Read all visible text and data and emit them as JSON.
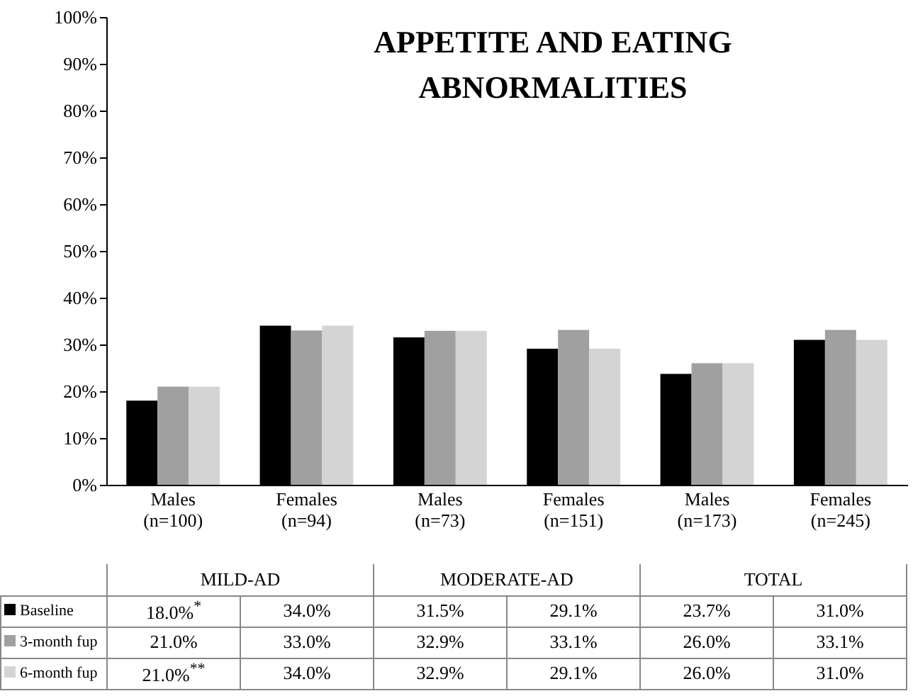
{
  "chart_data": {
    "type": "bar",
    "title": "APPETITE AND EATING ABNORMALITIES",
    "categories": [
      "Males (n=100)",
      "Females (n=94)",
      "Males (n=73)",
      "Females (n=151)",
      "Males (n=173)",
      "Females (n=245)"
    ],
    "series": [
      {
        "name": "Baseline",
        "color": "#000000",
        "values": [
          18.0,
          34.0,
          31.5,
          29.1,
          23.7,
          31.0
        ],
        "value_labels": [
          "18.0%$^{*}$",
          "34.0%",
          "31.5%",
          "29.1%",
          "23.7%",
          "31.0%"
        ]
      },
      {
        "name": "3-month fup",
        "color": "#a0a0a0",
        "values": [
          21.0,
          33.0,
          32.9,
          33.1,
          26.0,
          33.1
        ],
        "value_labels": [
          "21.0%",
          "33.0%",
          "32.9%",
          "33.1%",
          "26.0%",
          "33.1%"
        ]
      },
      {
        "name": "6-month fup",
        "color": "#d4d4d4",
        "values": [
          21.0,
          34.0,
          32.9,
          29.1,
          26.0,
          31.0
        ],
        "value_labels": [
          "21.0%$^{**}$",
          "34.0%",
          "32.9%",
          "29.1%",
          "26.0%",
          "31.0%"
        ]
      }
    ],
    "annotations": [
      "MILD-AD",
      "MODERATE-AD",
      "TOTAL"
    ],
    "legend": "bottom left",
    "ylim": [
      0,
      100
    ],
    "yticks": [
      {
        "value": 0,
        "label": "0%"
      },
      {
        "value": 10,
        "label": "10%"
      },
      {
        "value": 20,
        "label": "20%"
      },
      {
        "value": 30,
        "label": "30%"
      },
      {
        "value": 40,
        "label": "40%"
      },
      {
        "value": 50,
        "label": "50%"
      },
      {
        "value": 60,
        "label": "60%"
      },
      {
        "value": 70,
        "label": "70%"
      },
      {
        "value": 80,
        "label": "80%"
      },
      {
        "value": 90,
        "label": "90%"
      },
      {
        "value": 100,
        "label": "100%"
      }
    ]
  }
}
